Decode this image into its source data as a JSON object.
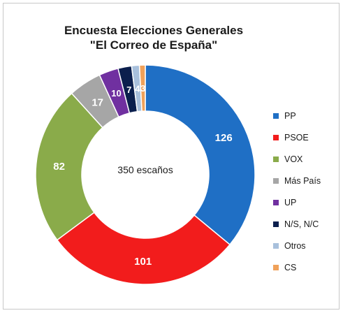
{
  "chart_data": {
    "type": "pie",
    "variant": "donut",
    "title": "Encuesta Elecciones Generales",
    "subtitle": "\"El Correo de España\"",
    "center_label": "350 escaños",
    "legend_position": "right",
    "slices": [
      {
        "label": "PP",
        "value": 126,
        "color": "#1f6fc5",
        "show_label": "126"
      },
      {
        "label": "PSOE",
        "value": 101,
        "color": "#f21c1c",
        "show_label": "101"
      },
      {
        "label": "VOX",
        "value": 82,
        "color": "#8aab4a",
        "show_label": "82"
      },
      {
        "label": "Más País",
        "value": 17,
        "color": "#a6a6a6",
        "show_label": "17"
      },
      {
        "label": "UP",
        "value": 10,
        "color": "#7030a0",
        "show_label": "10"
      },
      {
        "label": "N/S, N/C",
        "value": 7,
        "color": "#0b1f4d",
        "show_label": "7"
      },
      {
        "label": "Otros",
        "value": 4,
        "color": "#a8c0dc",
        "show_label": "4"
      },
      {
        "label": "CS",
        "value": 3,
        "color": "#f0a15a",
        "show_label": "3"
      }
    ]
  }
}
